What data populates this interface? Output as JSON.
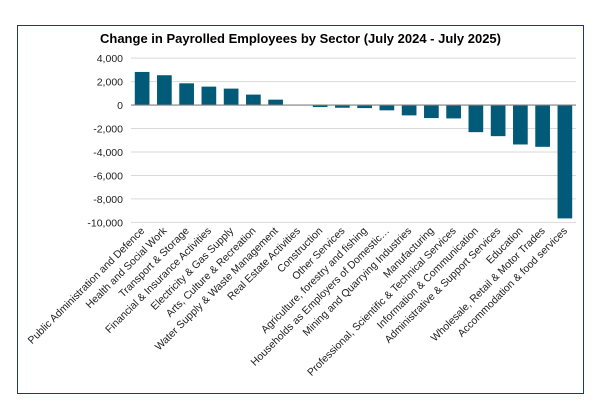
{
  "chart_data": {
    "type": "bar",
    "title": "Change in Payrolled Employees by Sector (July 2024 - July 2025)",
    "xlabel": "",
    "ylabel": "",
    "ylim": [
      -10000,
      4000
    ],
    "yticks": [
      4000,
      2000,
      0,
      -2000,
      -4000,
      -6000,
      -8000,
      -10000
    ],
    "ytick_labels": [
      "4,000",
      "2,000",
      "0",
      "-2,000",
      "-4,000",
      "-6,000",
      "-8,000",
      "-10,000"
    ],
    "grid": true,
    "legend": "none",
    "bar_color": "#005a78",
    "categories": [
      "Public Administration and Defence",
      "Health and Social Work",
      "Transport & Storage",
      "Financial & Insurance Activities",
      "Electricity & Gas Supply",
      "Arts, Culture & Recreation",
      "Water Supply & Waste Management",
      "Real Estate Activities",
      "Construction",
      "Other Services",
      "Agriculture, forestry and fishing",
      "Households as Employers of Domestic…",
      "Mining and Quarrying Industries",
      "Manufacturing",
      "Professional, Scientific & Technical Services",
      "Information & Communication",
      "Administrative & Support Services",
      "Education",
      "Wholesale, Retail & Motor Trades",
      "Accommodation & food services"
    ],
    "values": [
      2820,
      2540,
      1850,
      1570,
      1400,
      890,
      460,
      20,
      -170,
      -230,
      -260,
      -450,
      -880,
      -1110,
      -1140,
      -2310,
      -2650,
      -3360,
      -3560,
      -9660
    ]
  }
}
